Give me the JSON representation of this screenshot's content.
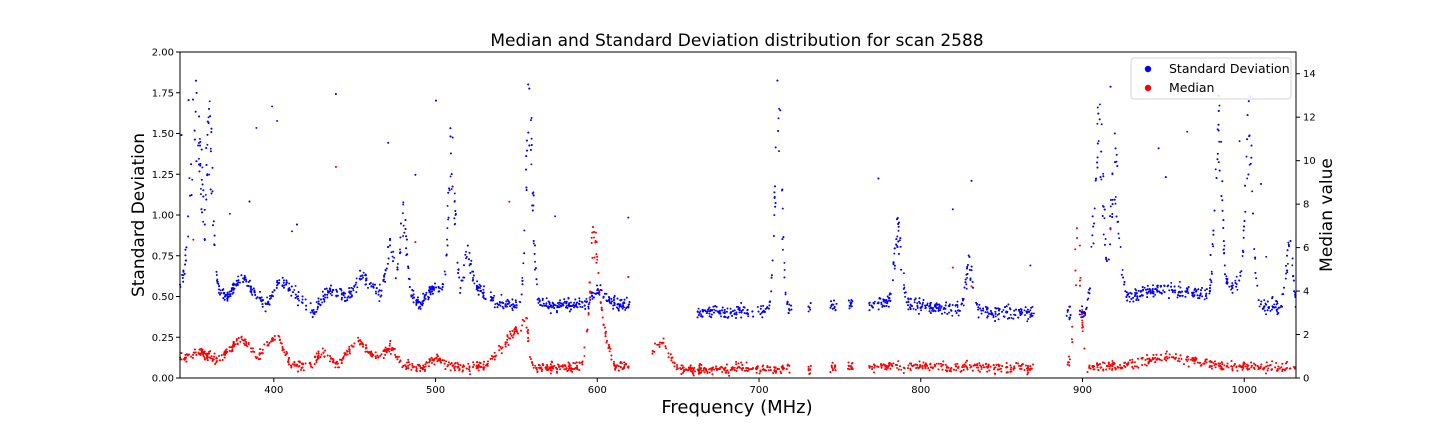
{
  "chart_data": {
    "type": "scatter",
    "title": "Median and Standard Deviation distribution for scan 2588",
    "xlabel": "Frequency (MHz)",
    "ylabel_left": "Standard Deviation",
    "ylabel_right": "Median value",
    "xlim": [
      342,
      1032
    ],
    "ylim_left": [
      0,
      2.0
    ],
    "ylim_right": [
      0,
      15
    ],
    "x_ticks": [
      "400",
      "500",
      "600",
      "700",
      "800",
      "900",
      "1000"
    ],
    "y_left_ticks": [
      "0.00",
      "0.25",
      "0.50",
      "0.75",
      "1.00",
      "1.25",
      "1.50",
      "1.75",
      "2.00"
    ],
    "y_right_ticks": [
      "0",
      "2",
      "4",
      "6",
      "8",
      "10",
      "12",
      "14"
    ],
    "grid": false,
    "legend_placement": "top-right",
    "series": [
      {
        "name": "Standard Deviation",
        "axis": "left",
        "color": "#0000ff",
        "baseline": [
          [
            342,
            0.55
          ],
          [
            360,
            0.55
          ],
          [
            372,
            0.5
          ],
          [
            380,
            0.62
          ],
          [
            395,
            0.45
          ],
          [
            405,
            0.6
          ],
          [
            415,
            0.5
          ],
          [
            425,
            0.4
          ],
          [
            435,
            0.55
          ],
          [
            445,
            0.5
          ],
          [
            455,
            0.62
          ],
          [
            465,
            0.52
          ],
          [
            475,
            0.6
          ],
          [
            490,
            0.45
          ],
          [
            500,
            0.57
          ],
          [
            510,
            0.5
          ],
          [
            525,
            0.55
          ],
          [
            540,
            0.45
          ],
          [
            550,
            0.45
          ],
          [
            565,
            0.45
          ],
          [
            590,
            0.45
          ],
          [
            600,
            0.5
          ],
          [
            615,
            0.45
          ],
          [
            640,
            0.42
          ],
          [
            680,
            0.4
          ],
          [
            720,
            0.42
          ],
          [
            760,
            0.45
          ],
          [
            780,
            0.47
          ],
          [
            800,
            0.45
          ],
          [
            820,
            0.42
          ],
          [
            850,
            0.4
          ],
          [
            870,
            0.4
          ],
          [
            895,
            0.4
          ],
          [
            905,
            0.4
          ],
          [
            920,
            0.45
          ],
          [
            935,
            0.52
          ],
          [
            950,
            0.55
          ],
          [
            970,
            0.52
          ],
          [
            980,
            0.5
          ],
          [
            1000,
            0.6
          ],
          [
            1010,
            0.45
          ],
          [
            1032,
            0.42
          ]
        ],
        "peaks": [
          [
            352,
            1.95,
            5
          ],
          [
            360,
            1.8,
            3
          ],
          [
            472,
            0.9,
            3
          ],
          [
            480,
            1.1,
            3
          ],
          [
            510,
            1.65,
            3
          ],
          [
            520,
            0.85,
            3
          ],
          [
            558,
            1.95,
            3
          ],
          [
            600,
            0.55,
            3
          ],
          [
            712,
            1.9,
            3
          ],
          [
            786,
            1.05,
            3
          ],
          [
            830,
            0.8,
            3
          ],
          [
            910,
            1.85,
            4
          ],
          [
            920,
            1.5,
            4
          ],
          [
            984,
            1.85,
            3
          ],
          [
            1003,
            1.8,
            3
          ],
          [
            1028,
            0.9,
            3
          ]
        ],
        "gaps": [
          [
            620,
            662
          ],
          [
            720,
            730
          ],
          [
            732,
            744
          ],
          [
            748,
            755
          ],
          [
            758,
            768
          ],
          [
            870,
            890
          ],
          [
            893,
            898
          ]
        ]
      },
      {
        "name": "Median",
        "axis": "right",
        "color": "#ff0000",
        "baseline": [
          [
            342,
            0.9
          ],
          [
            355,
            1.2
          ],
          [
            365,
            0.8
          ],
          [
            380,
            1.8
          ],
          [
            390,
            1.0
          ],
          [
            402,
            2.0
          ],
          [
            410,
            0.7
          ],
          [
            420,
            0.5
          ],
          [
            430,
            1.1
          ],
          [
            440,
            0.6
          ],
          [
            452,
            1.8
          ],
          [
            462,
            0.9
          ],
          [
            472,
            1.4
          ],
          [
            480,
            0.6
          ],
          [
            490,
            0.4
          ],
          [
            500,
            0.9
          ],
          [
            510,
            0.55
          ],
          [
            530,
            0.5
          ],
          [
            550,
            2.2
          ],
          [
            560,
            0.5
          ],
          [
            575,
            0.5
          ],
          [
            590,
            0.5
          ],
          [
            600,
            3.5
          ],
          [
            610,
            0.6
          ],
          [
            620,
            0.5
          ],
          [
            640,
            1.5
          ],
          [
            650,
            0.4
          ],
          [
            700,
            0.4
          ],
          [
            780,
            0.55
          ],
          [
            800,
            0.55
          ],
          [
            820,
            0.5
          ],
          [
            870,
            0.45
          ],
          [
            900,
            0.5
          ],
          [
            910,
            0.5
          ],
          [
            930,
            0.6
          ],
          [
            950,
            1.0
          ],
          [
            965,
            0.9
          ],
          [
            980,
            0.6
          ],
          [
            1000,
            0.55
          ],
          [
            1032,
            0.45
          ]
        ],
        "peaks": [
          [
            555,
            3.2,
            3
          ],
          [
            598,
            7.5,
            3
          ],
          [
            640,
            1.8,
            3
          ],
          [
            897,
            8.0,
            3
          ]
        ],
        "gaps": [
          [
            620,
            634
          ],
          [
            720,
            730
          ],
          [
            732,
            744
          ],
          [
            748,
            755
          ],
          [
            758,
            768
          ],
          [
            870,
            890
          ]
        ]
      }
    ]
  }
}
